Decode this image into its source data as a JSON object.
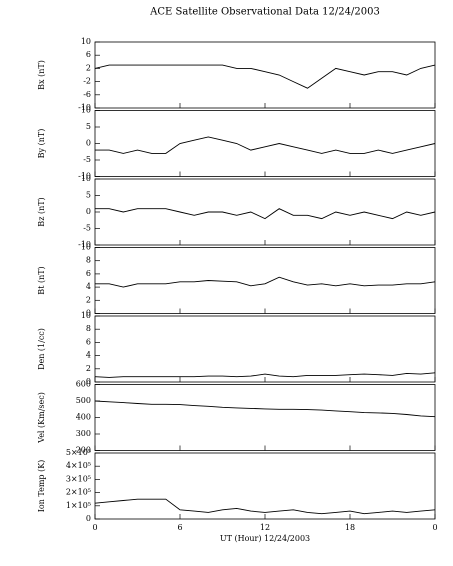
{
  "chart_data": [
    {
      "type": "line",
      "title": "ACE Satellite Observational Data   12/24/2003",
      "ylabel": "Bx (nT)",
      "color": "#000000",
      "x": [
        0,
        1,
        2,
        3,
        4,
        5,
        6,
        7,
        8,
        9,
        10,
        11,
        12,
        13,
        14,
        15,
        16,
        17,
        18,
        19,
        20,
        21,
        22,
        23,
        24
      ],
      "values": [
        2,
        3,
        3,
        3,
        3,
        3,
        3,
        3,
        3,
        3,
        2,
        2,
        1,
        0,
        -2,
        -4,
        -1,
        2,
        1,
        0,
        1,
        1,
        0,
        2,
        3
      ],
      "xlim": [
        0,
        24
      ],
      "xticks": [
        0,
        6,
        12,
        18,
        {
          "value": 24,
          "label": "0"
        }
      ],
      "ylim": [
        -10,
        10
      ],
      "yticks": [
        -10,
        -6,
        -2,
        2,
        6,
        10
      ]
    },
    {
      "type": "line",
      "ylabel": "By (nT)",
      "color": "#000000",
      "x": [
        0,
        1,
        2,
        3,
        4,
        5,
        6,
        7,
        8,
        9,
        10,
        11,
        12,
        13,
        14,
        15,
        16,
        17,
        18,
        19,
        20,
        21,
        22,
        23,
        24
      ],
      "values": [
        -2,
        -2,
        -3,
        -2,
        -3,
        -3,
        0,
        1,
        2,
        1,
        0,
        -2,
        -1,
        0,
        -1,
        -2,
        -3,
        -2,
        -3,
        -3,
        -2,
        -3,
        -2,
        -1,
        0
      ],
      "xlim": [
        0,
        24
      ],
      "xticks": [
        0,
        6,
        12,
        18,
        {
          "value": 24,
          "label": "0"
        }
      ],
      "ylim": [
        -10,
        10
      ],
      "yticks": [
        -10,
        -5,
        0,
        5,
        10
      ]
    },
    {
      "type": "line",
      "ylabel": "Bz (nT)",
      "color": "#000000",
      "x": [
        0,
        1,
        2,
        3,
        4,
        5,
        6,
        7,
        8,
        9,
        10,
        11,
        12,
        13,
        14,
        15,
        16,
        17,
        18,
        19,
        20,
        21,
        22,
        23,
        24
      ],
      "values": [
        1,
        1,
        0,
        1,
        1,
        1,
        0,
        -1,
        0,
        0,
        -1,
        0,
        -2,
        1,
        -1,
        -1,
        -2,
        0,
        -1,
        0,
        -1,
        -2,
        0,
        -1,
        0
      ],
      "xlim": [
        0,
        24
      ],
      "xticks": [
        0,
        6,
        12,
        18,
        {
          "value": 24,
          "label": "0"
        }
      ],
      "ylim": [
        -10,
        10
      ],
      "yticks": [
        -10,
        -5,
        0,
        5,
        10
      ]
    },
    {
      "type": "line",
      "ylabel": "Bt (nT)",
      "color": "#000000",
      "x": [
        0,
        1,
        2,
        3,
        4,
        5,
        6,
        7,
        8,
        9,
        10,
        11,
        12,
        13,
        14,
        15,
        16,
        17,
        18,
        19,
        20,
        21,
        22,
        23,
        24
      ],
      "values": [
        4.5,
        4.5,
        4,
        4.5,
        4.5,
        4.5,
        4.8,
        4.8,
        5,
        4.9,
        4.8,
        4.2,
        4.5,
        5.5,
        4.8,
        4.3,
        4.5,
        4.2,
        4.5,
        4.2,
        4.3,
        4.3,
        4.5,
        4.5,
        4.8
      ],
      "xlim": [
        0,
        24
      ],
      "xticks": [
        0,
        6,
        12,
        18,
        {
          "value": 24,
          "label": "0"
        }
      ],
      "ylim": [
        0,
        10
      ],
      "yticks": [
        0,
        2,
        4,
        6,
        8,
        10
      ]
    },
    {
      "type": "line",
      "ylabel": "Den (1/cc)",
      "color": "#000000",
      "x": [
        0,
        1,
        2,
        3,
        4,
        5,
        6,
        7,
        8,
        9,
        10,
        11,
        12,
        13,
        14,
        15,
        16,
        17,
        18,
        19,
        20,
        21,
        22,
        23,
        24
      ],
      "values": [
        0.8,
        0.7,
        0.8,
        0.8,
        0.8,
        0.8,
        0.8,
        0.8,
        0.9,
        0.9,
        0.8,
        0.9,
        1.2,
        0.9,
        0.8,
        1,
        1,
        1,
        1.1,
        1.2,
        1.1,
        1,
        1.3,
        1.2,
        1.4
      ],
      "xlim": [
        0,
        24
      ],
      "xticks": [
        0,
        6,
        12,
        18,
        {
          "value": 24,
          "label": "0"
        }
      ],
      "ylim": [
        0,
        10
      ],
      "yticks": [
        0,
        2,
        4,
        6,
        8,
        10
      ]
    },
    {
      "type": "line",
      "ylabel": "Vel (Km/sec)",
      "color": "#000000",
      "x": [
        0,
        1,
        2,
        3,
        4,
        5,
        6,
        7,
        8,
        9,
        10,
        11,
        12,
        13,
        14,
        15,
        16,
        17,
        18,
        19,
        20,
        21,
        22,
        23,
        24
      ],
      "values": [
        500,
        495,
        490,
        485,
        480,
        480,
        478,
        472,
        468,
        462,
        458,
        455,
        452,
        450,
        450,
        448,
        445,
        440,
        435,
        430,
        428,
        425,
        418,
        410,
        405
      ],
      "xlim": [
        0,
        24
      ],
      "xticks": [
        0,
        6,
        12,
        18,
        {
          "value": 24,
          "label": "0"
        }
      ],
      "ylim": [
        200,
        600
      ],
      "yticks": [
        200,
        300,
        400,
        500,
        600
      ]
    },
    {
      "type": "line",
      "ylabel": "Ion Temp (K)",
      "xlabel": "UT (Hour)  12/24/2003",
      "color": "#000000",
      "x": [
        0,
        1,
        2,
        3,
        4,
        5,
        6,
        7,
        8,
        9,
        10,
        11,
        12,
        13,
        14,
        15,
        16,
        17,
        18,
        19,
        20,
        21,
        22,
        23,
        24
      ],
      "values": [
        120000,
        130000,
        140000,
        150000,
        150000,
        150000,
        70000,
        60000,
        50000,
        70000,
        80000,
        60000,
        50000,
        60000,
        70000,
        50000,
        40000,
        50000,
        60000,
        40000,
        50000,
        60000,
        50000,
        60000,
        70000
      ],
      "xlim": [
        0,
        24
      ],
      "xticks": [
        0,
        6,
        12,
        18,
        {
          "value": 24,
          "label": "0"
        }
      ],
      "ylim": [
        0,
        500000
      ],
      "yticks": [
        0,
        {
          "value": 100000,
          "label": "1×10⁵"
        },
        {
          "value": 200000,
          "label": "2×10⁵"
        },
        {
          "value": 300000,
          "label": "3×10⁵"
        },
        {
          "value": 400000,
          "label": "4×10⁵"
        },
        {
          "value": 500000,
          "label": "5×10⁵"
        }
      ]
    }
  ]
}
